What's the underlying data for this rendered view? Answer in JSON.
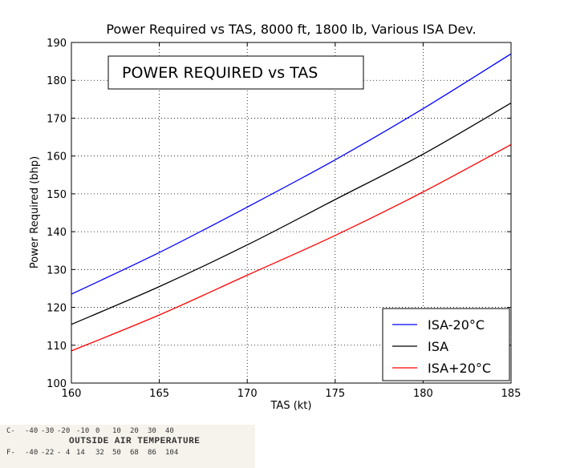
{
  "chart_data": {
    "type": "line",
    "title": "Power Required vs TAS, 8000 ft, 1800 lb, Various ISA Dev.",
    "xlabel": "TAS (kt)",
    "ylabel": "Power Required (bhp)",
    "xlim": [
      160,
      185
    ],
    "ylim": [
      100,
      190
    ],
    "xticks": [
      160,
      165,
      170,
      175,
      180,
      185
    ],
    "yticks": [
      100,
      110,
      120,
      130,
      140,
      150,
      160,
      170,
      180,
      190
    ],
    "grid": true,
    "legend_position": "lower-right",
    "annotation": "POWER REQUIRED vs TAS",
    "series": [
      {
        "name": "ISA-20°C",
        "color": "#0000ff",
        "x": [
          160,
          165,
          170,
          175,
          180,
          185
        ],
        "y": [
          123.5,
          134.5,
          146.5,
          159.0,
          172.5,
          187.0
        ]
      },
      {
        "name": "ISA",
        "color": "#000000",
        "x": [
          160,
          165,
          170,
          175,
          180,
          185
        ],
        "y": [
          115.5,
          125.5,
          136.5,
          148.5,
          160.5,
          174.0
        ]
      },
      {
        "name": "ISA+20°C",
        "color": "#ff0000",
        "x": [
          160,
          165,
          170,
          175,
          180,
          185
        ],
        "y": [
          108.5,
          118.0,
          128.5,
          139.0,
          150.5,
          163.0
        ]
      }
    ]
  },
  "oat_scale": {
    "title": "OUTSIDE AIR TEMPERATURE",
    "celsius_prefix": "C-",
    "celsius": [
      "-40",
      "-30",
      "-20",
      "-10",
      "0",
      "10",
      "20",
      "30",
      "40"
    ],
    "fahrenheit_prefix": "F-",
    "fahrenheit": [
      "-40",
      "-22",
      "- 4",
      "14",
      "32",
      "50",
      "68",
      "86",
      "104"
    ]
  }
}
